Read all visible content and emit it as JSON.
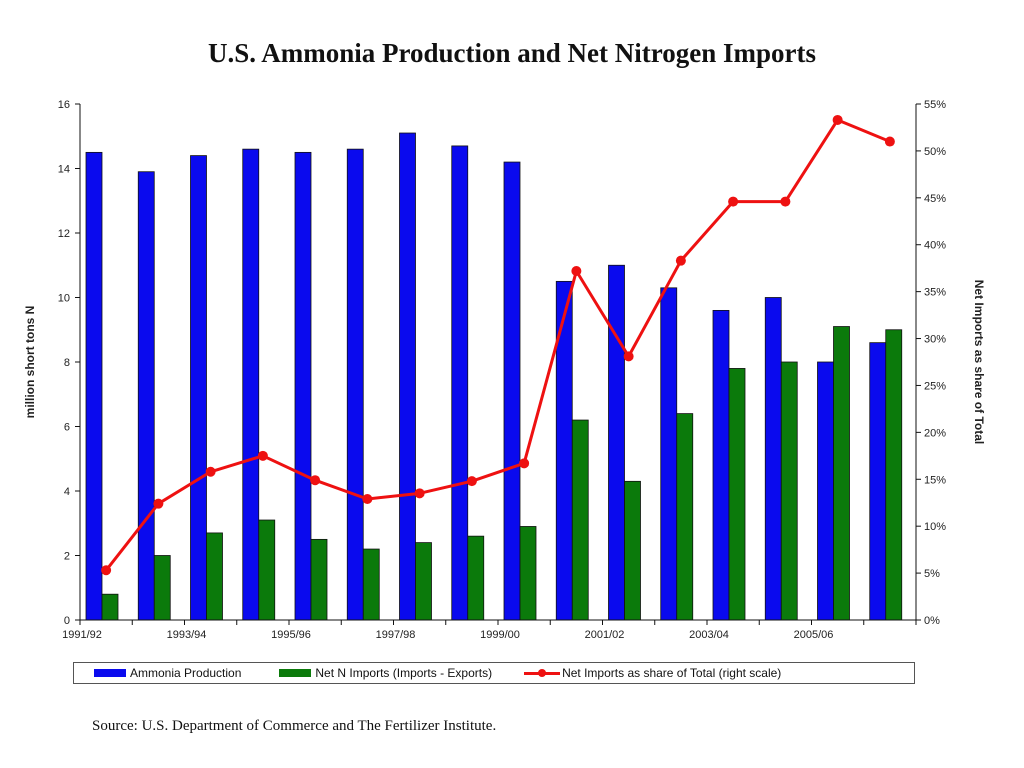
{
  "chart_data": {
    "type": "bar",
    "title": "U.S. Ammonia Production and Net Nitrogen Imports",
    "ylabel": "million short tons N",
    "y2label": "Net Imports as share of Total",
    "ylim": [
      0,
      16
    ],
    "y2lim": [
      0,
      55
    ],
    "yticks": [
      "0",
      "2",
      "4",
      "6",
      "8",
      "10",
      "12",
      "14",
      "16"
    ],
    "y2ticks": [
      "0%",
      "5%",
      "10%",
      "15%",
      "20%",
      "25%",
      "30%",
      "35%",
      "40%",
      "45%",
      "50%",
      "55%"
    ],
    "categories": [
      "1991/92",
      "1992/93",
      "1993/94",
      "1994/95",
      "1995/96",
      "1996/97",
      "1997/98",
      "1998/99",
      "1999/00",
      "2000/01",
      "2001/02",
      "2002/03",
      "2003/04",
      "2004/05",
      "2005/06",
      "2006/07"
    ],
    "xtick_labels": [
      "1991/92",
      "",
      "1993/94",
      "",
      "1995/96",
      "",
      "1997/98",
      "",
      "1999/00",
      "",
      "2001/02",
      "",
      "2003/04",
      "",
      "2005/06",
      ""
    ],
    "series": [
      {
        "name": "Ammonia Production",
        "type": "bar",
        "axis": "left",
        "color": "#0a0aee",
        "values": [
          14.5,
          13.9,
          14.4,
          14.6,
          14.5,
          14.6,
          15.1,
          14.7,
          14.2,
          10.5,
          11.0,
          10.3,
          9.6,
          10.0,
          8.0,
          8.6
        ]
      },
      {
        "name": "Net N Imports (Imports - Exports)",
        "type": "bar",
        "axis": "left",
        "color": "#0b7a0b",
        "values": [
          0.8,
          2.0,
          2.7,
          3.1,
          2.5,
          2.2,
          2.4,
          2.6,
          2.9,
          6.2,
          4.3,
          6.4,
          7.8,
          8.0,
          9.1,
          9.0
        ]
      },
      {
        "name": "Net Imports as share of Total (right scale)",
        "type": "line",
        "axis": "right",
        "color": "#ee1111",
        "values": [
          5.3,
          12.4,
          15.8,
          17.5,
          14.9,
          12.9,
          13.5,
          14.8,
          16.7,
          37.2,
          28.1,
          38.3,
          44.6,
          44.6,
          53.3,
          51.0
        ]
      }
    ],
    "grid": false,
    "legend_position": "bottom"
  },
  "source": "Source: U.S. Department of Commerce and The Fertilizer Institute."
}
